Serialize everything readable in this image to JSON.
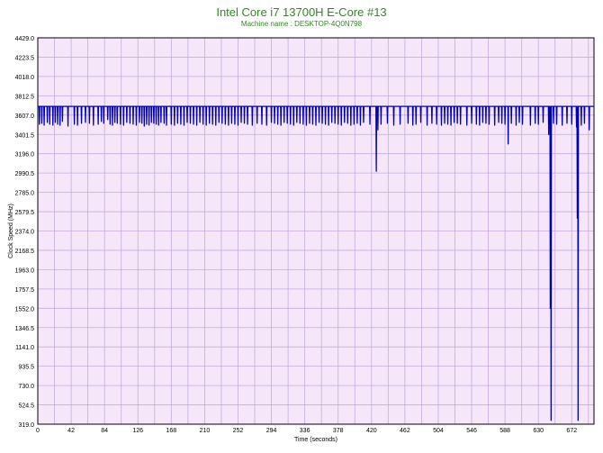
{
  "chart_data": {
    "type": "line",
    "title": "Intel Core i7 13700H E-Core #13",
    "subtitle": "Machine name : DESKTOP-4Q0N798",
    "xlabel": "Time (seconds)",
    "ylabel": "Clock Speed (MHz)",
    "xlim": [
      0,
      700
    ],
    "ylim": [
      319.0,
      4429.0
    ],
    "xticks": [
      0,
      42,
      84,
      126,
      168,
      210,
      252,
      294,
      336,
      378,
      420,
      462,
      504,
      546,
      588,
      630,
      672
    ],
    "yticks": [
      319.0,
      524.5,
      730.0,
      935.5,
      1141.0,
      1346.5,
      1552.0,
      1757.5,
      1963.0,
      2168.5,
      2374.0,
      2579.5,
      2785.0,
      2990.5,
      3196.0,
      3401.5,
      3607.0,
      3812.5,
      4018.0,
      4223.5,
      4429.0
    ],
    "grid": true,
    "colors": {
      "line": "#0000b4",
      "plot_bg": "#f5e6fa",
      "grid": "#c8aadc",
      "title": "#2e8b22"
    },
    "series": [
      {
        "values": {
          "baseline": 3700,
          "dips": [
            [
              2,
              3510
            ],
            [
              5,
              3520
            ],
            [
              8,
              3500
            ],
            [
              12,
              3530
            ],
            [
              15,
              3510
            ],
            [
              19,
              3500
            ],
            [
              22,
              3530
            ],
            [
              25,
              3510
            ],
            [
              28,
              3500
            ],
            [
              31,
              3540
            ],
            [
              38,
              3490
            ],
            [
              46,
              3510
            ],
            [
              50,
              3500
            ],
            [
              55,
              3520
            ],
            [
              60,
              3530
            ],
            [
              65,
              3520
            ],
            [
              70,
              3500
            ],
            [
              76,
              3510
            ],
            [
              80,
              3540
            ],
            [
              83,
              3520
            ],
            [
              88,
              3560
            ],
            [
              91,
              3510
            ],
            [
              94,
              3500
            ],
            [
              97,
              3530
            ],
            [
              100,
              3520
            ],
            [
              104,
              3510
            ],
            [
              108,
              3500
            ],
            [
              112,
              3530
            ],
            [
              116,
              3520
            ],
            [
              120,
              3510
            ],
            [
              124,
              3500
            ],
            [
              128,
              3530
            ],
            [
              131,
              3520
            ],
            [
              134,
              3490
            ],
            [
              137,
              3510
            ],
            [
              140,
              3500
            ],
            [
              143,
              3530
            ],
            [
              146,
              3520
            ],
            [
              149,
              3510
            ],
            [
              152,
              3500
            ],
            [
              155,
              3530
            ],
            [
              159,
              3520
            ],
            [
              162,
              3500
            ],
            [
              168,
              3510
            ],
            [
              172,
              3500
            ],
            [
              176,
              3520
            ],
            [
              180,
              3510
            ],
            [
              184,
              3500
            ],
            [
              188,
              3530
            ],
            [
              192,
              3520
            ],
            [
              196,
              3510
            ],
            [
              200,
              3500
            ],
            [
              204,
              3530
            ],
            [
              208,
              3510
            ],
            [
              212,
              3500
            ],
            [
              216,
              3520
            ],
            [
              220,
              3510
            ],
            [
              224,
              3500
            ],
            [
              228,
              3530
            ],
            [
              232,
              3520
            ],
            [
              236,
              3510
            ],
            [
              240,
              3500
            ],
            [
              244,
              3520
            ],
            [
              248,
              3510
            ],
            [
              252,
              3500
            ],
            [
              256,
              3530
            ],
            [
              260,
              3520
            ],
            [
              264,
              3510
            ],
            [
              270,
              3500
            ],
            [
              276,
              3520
            ],
            [
              282,
              3510
            ],
            [
              288,
              3500
            ],
            [
              294,
              3530
            ],
            [
              298,
              3520
            ],
            [
              302,
              3510
            ],
            [
              306,
              3500
            ],
            [
              310,
              3530
            ],
            [
              314,
              3520
            ],
            [
              318,
              3510
            ],
            [
              322,
              3500
            ],
            [
              326,
              3530
            ],
            [
              330,
              3520
            ],
            [
              334,
              3510
            ],
            [
              338,
              3500
            ],
            [
              342,
              3520
            ],
            [
              346,
              3510
            ],
            [
              350,
              3500
            ],
            [
              354,
              3530
            ],
            [
              358,
              3520
            ],
            [
              362,
              3510
            ],
            [
              366,
              3500
            ],
            [
              370,
              3530
            ],
            [
              374,
              3520
            ],
            [
              378,
              3510
            ],
            [
              382,
              3500
            ],
            [
              386,
              3530
            ],
            [
              390,
              3520
            ],
            [
              394,
              3500
            ],
            [
              398,
              3510
            ],
            [
              402,
              3520
            ],
            [
              406,
              3500
            ],
            [
              410,
              3530
            ],
            [
              418,
              3510
            ],
            [
              426,
              3010
            ],
            [
              428,
              3450
            ],
            [
              432,
              3510
            ],
            [
              440,
              3520
            ],
            [
              448,
              3500
            ],
            [
              456,
              3510
            ],
            [
              466,
              3520
            ],
            [
              472,
              3500
            ],
            [
              476,
              3510
            ],
            [
              482,
              3530
            ],
            [
              490,
              3500
            ],
            [
              496,
              3520
            ],
            [
              502,
              3510
            ],
            [
              508,
              3500
            ],
            [
              512,
              3520
            ],
            [
              516,
              3510
            ],
            [
              520,
              3500
            ],
            [
              524,
              3530
            ],
            [
              528,
              3520
            ],
            [
              532,
              3510
            ],
            [
              540,
              3500
            ],
            [
              546,
              3520
            ],
            [
              552,
              3510
            ],
            [
              556,
              3500
            ],
            [
              560,
              3530
            ],
            [
              564,
              3520
            ],
            [
              568,
              3510
            ],
            [
              575,
              3500
            ],
            [
              580,
              3530
            ],
            [
              584,
              3520
            ],
            [
              588,
              3510
            ],
            [
              592,
              3300
            ],
            [
              596,
              3520
            ],
            [
              602,
              3500
            ],
            [
              606,
              3530
            ],
            [
              610,
              3510
            ],
            [
              620,
              3500
            ],
            [
              626,
              3520
            ],
            [
              630,
              3510
            ],
            [
              636,
              3530
            ],
            [
              643,
              3400
            ],
            [
              645,
              1550
            ],
            [
              646,
              360
            ],
            [
              649,
              3520
            ],
            [
              653,
              3510
            ],
            [
              660,
              3500
            ],
            [
              666,
              3520
            ],
            [
              672,
              3510
            ],
            [
              678,
              3480
            ],
            [
              679,
              2510
            ],
            [
              680,
              360
            ],
            [
              684,
              3500
            ],
            [
              688,
              3520
            ],
            [
              694,
              3450
            ]
          ]
        }
      }
    ]
  }
}
